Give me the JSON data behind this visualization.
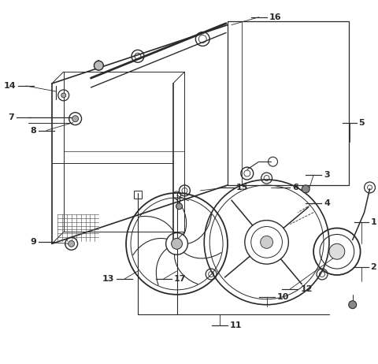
{
  "bg_color": "#ffffff",
  "line_color": "#2a2a2a",
  "fig_width": 4.8,
  "fig_height": 4.62,
  "dpi": 100
}
